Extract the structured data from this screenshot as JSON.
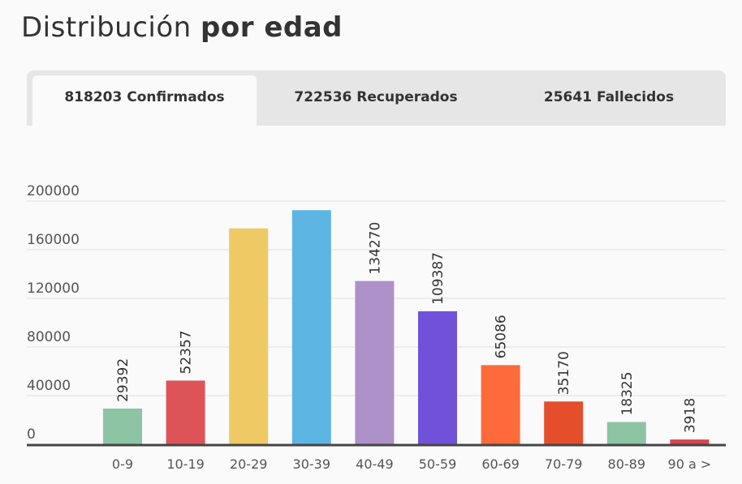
{
  "header": {
    "title_regular": "Distribución",
    "title_bold": "por edad"
  },
  "tabs": [
    {
      "label": "818203 Confirmados",
      "active": true
    },
    {
      "label": "722536 Recuperados",
      "active": false
    },
    {
      "label": "25641 Fallecidos",
      "active": false
    }
  ],
  "chart_data": {
    "type": "bar",
    "categories": [
      "0-9",
      "10-19",
      "20-29",
      "30-39",
      "40-49",
      "50-59",
      "60-69",
      "70-79",
      "80-89",
      "90 a >"
    ],
    "values": [
      29392,
      52357,
      177500,
      192500,
      134270,
      109387,
      65086,
      35170,
      18325,
      3918
    ],
    "labels": [
      "29392",
      "52357",
      "",
      "",
      "134270",
      "109387",
      "65086",
      "35170",
      "18325",
      "3918"
    ],
    "colors": [
      "#8cc4a4",
      "#dd5458",
      "#efc964",
      "#5db5e3",
      "#ad91c8",
      "#6f52d9",
      "#fe6a3a",
      "#e44e2a",
      "#8cc4a4",
      "#d9444a"
    ],
    "yticks": [
      0,
      40000,
      80000,
      120000,
      160000,
      200000
    ],
    "ylim": [
      0,
      200000
    ],
    "grid": true,
    "axis_color": "#444444",
    "grid_color": "#dddddd"
  }
}
